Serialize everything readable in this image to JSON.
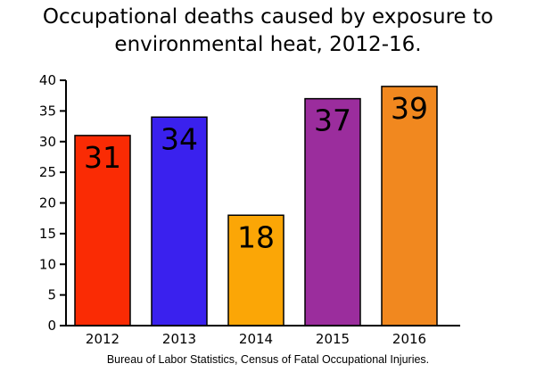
{
  "chart_data": {
    "type": "bar",
    "title_lines": [
      "Occupational deaths caused by exposure to",
      "environmental heat, 2012-16."
    ],
    "categories": [
      "2012",
      "2013",
      "2014",
      "2015",
      "2016"
    ],
    "values": [
      31,
      34,
      18,
      37,
      39
    ],
    "bar_colors": [
      "#fa2b04",
      "#3a21ee",
      "#fba606",
      "#9b2d9d",
      "#f1881f"
    ],
    "xlabel": "",
    "ylabel": "",
    "ylim": [
      0,
      40
    ],
    "yticks": [
      0,
      5,
      10,
      15,
      20,
      25,
      30,
      35,
      40
    ],
    "grid": false,
    "legend": "none",
    "source": "Bureau of Labor Statistics, Census of Fatal Occupational Injuries."
  }
}
